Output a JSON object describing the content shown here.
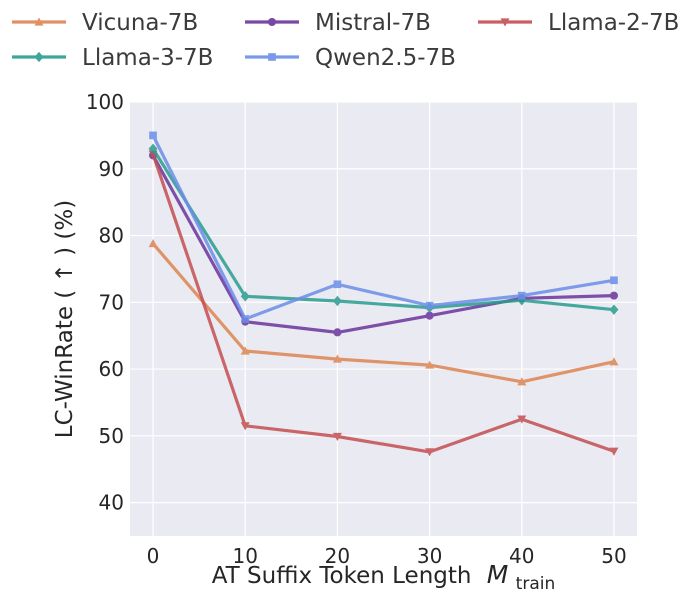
{
  "chart_data": {
    "type": "line",
    "title": "",
    "xlabel": "AT Suffix Token Length",
    "xlabel_math": "M",
    "xlabel_sub": "train",
    "ylabel": "LC-WinRate ( ↑ ) (%)",
    "x": [
      0,
      10,
      20,
      30,
      40,
      50
    ],
    "xlim": [
      -2.5,
      52.5
    ],
    "ylim": [
      35,
      100
    ],
    "xticks": [
      "0",
      "10",
      "20",
      "30",
      "40",
      "50"
    ],
    "yticks": [
      "40",
      "50",
      "60",
      "70",
      "80",
      "90",
      "100"
    ],
    "grid": true,
    "legend_position": "top, above plot, 3 columns",
    "series": [
      {
        "name": "Vicuna-7B",
        "color": "#dd8452",
        "marker": "triangle-up",
        "values": [
          78.8,
          62.7,
          61.5,
          60.6,
          58.1,
          61.1
        ]
      },
      {
        "name": "Mistral-7B",
        "color": "#6a359c",
        "marker": "circle",
        "values": [
          92.0,
          67.1,
          65.5,
          68.0,
          70.6,
          71.0
        ]
      },
      {
        "name": "Llama-2-7B",
        "color": "#c44e52",
        "marker": "triangle-down",
        "values": [
          92.2,
          51.5,
          49.9,
          47.6,
          52.5,
          47.7
        ]
      },
      {
        "name": "Llama-3-7B",
        "color": "#2a9d8f",
        "marker": "diamond",
        "values": [
          93.0,
          70.9,
          70.2,
          69.2,
          70.3,
          68.9
        ]
      },
      {
        "name": "Qwen2.5-7B",
        "color": "#6b8ee8",
        "marker": "square",
        "values": [
          95.0,
          67.5,
          72.7,
          69.5,
          71.0,
          73.3
        ]
      }
    ]
  }
}
